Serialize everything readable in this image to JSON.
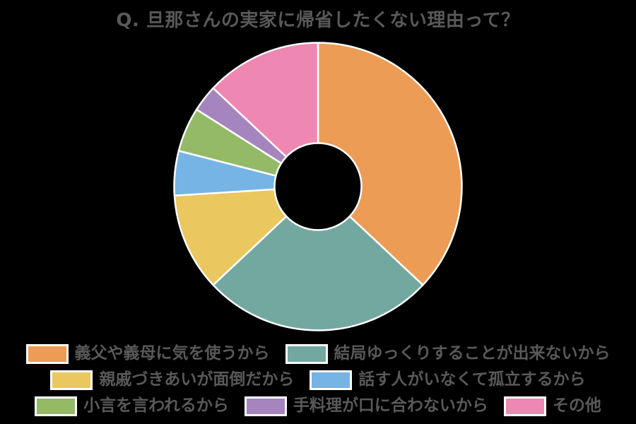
{
  "page": {
    "background_color": "#000000",
    "text_color": "#595959",
    "slice_stroke_color": "#FFFFFF"
  },
  "chart_data": {
    "type": "pie",
    "subtype": "donut",
    "title": "Q. 旦那さんの実家に帰省したくない理由って？",
    "unit": "percent (estimated from slice angles; no data labels shown)",
    "start_angle_deg": 0,
    "direction": "clockwise",
    "legend_position": "bottom",
    "categories": [
      "義父や義母に気を使うから",
      "結局ゆっくりすることが出来ないから",
      "親戚づきあいが面倒だから",
      "話す人がいなくて孤立するから",
      "小言を言われるから",
      "手料理が口に合わないから",
      "その他"
    ],
    "values": [
      37,
      26,
      11,
      5,
      5,
      3,
      13
    ],
    "colors": [
      "#ED9C55",
      "#73A8A1",
      "#EAC75F",
      "#76B4E5",
      "#94BA68",
      "#A685BE",
      "#EE87B1"
    ],
    "legend_rows": [
      [
        0,
        1
      ],
      [
        2,
        3
      ],
      [
        4,
        5,
        6
      ]
    ]
  }
}
